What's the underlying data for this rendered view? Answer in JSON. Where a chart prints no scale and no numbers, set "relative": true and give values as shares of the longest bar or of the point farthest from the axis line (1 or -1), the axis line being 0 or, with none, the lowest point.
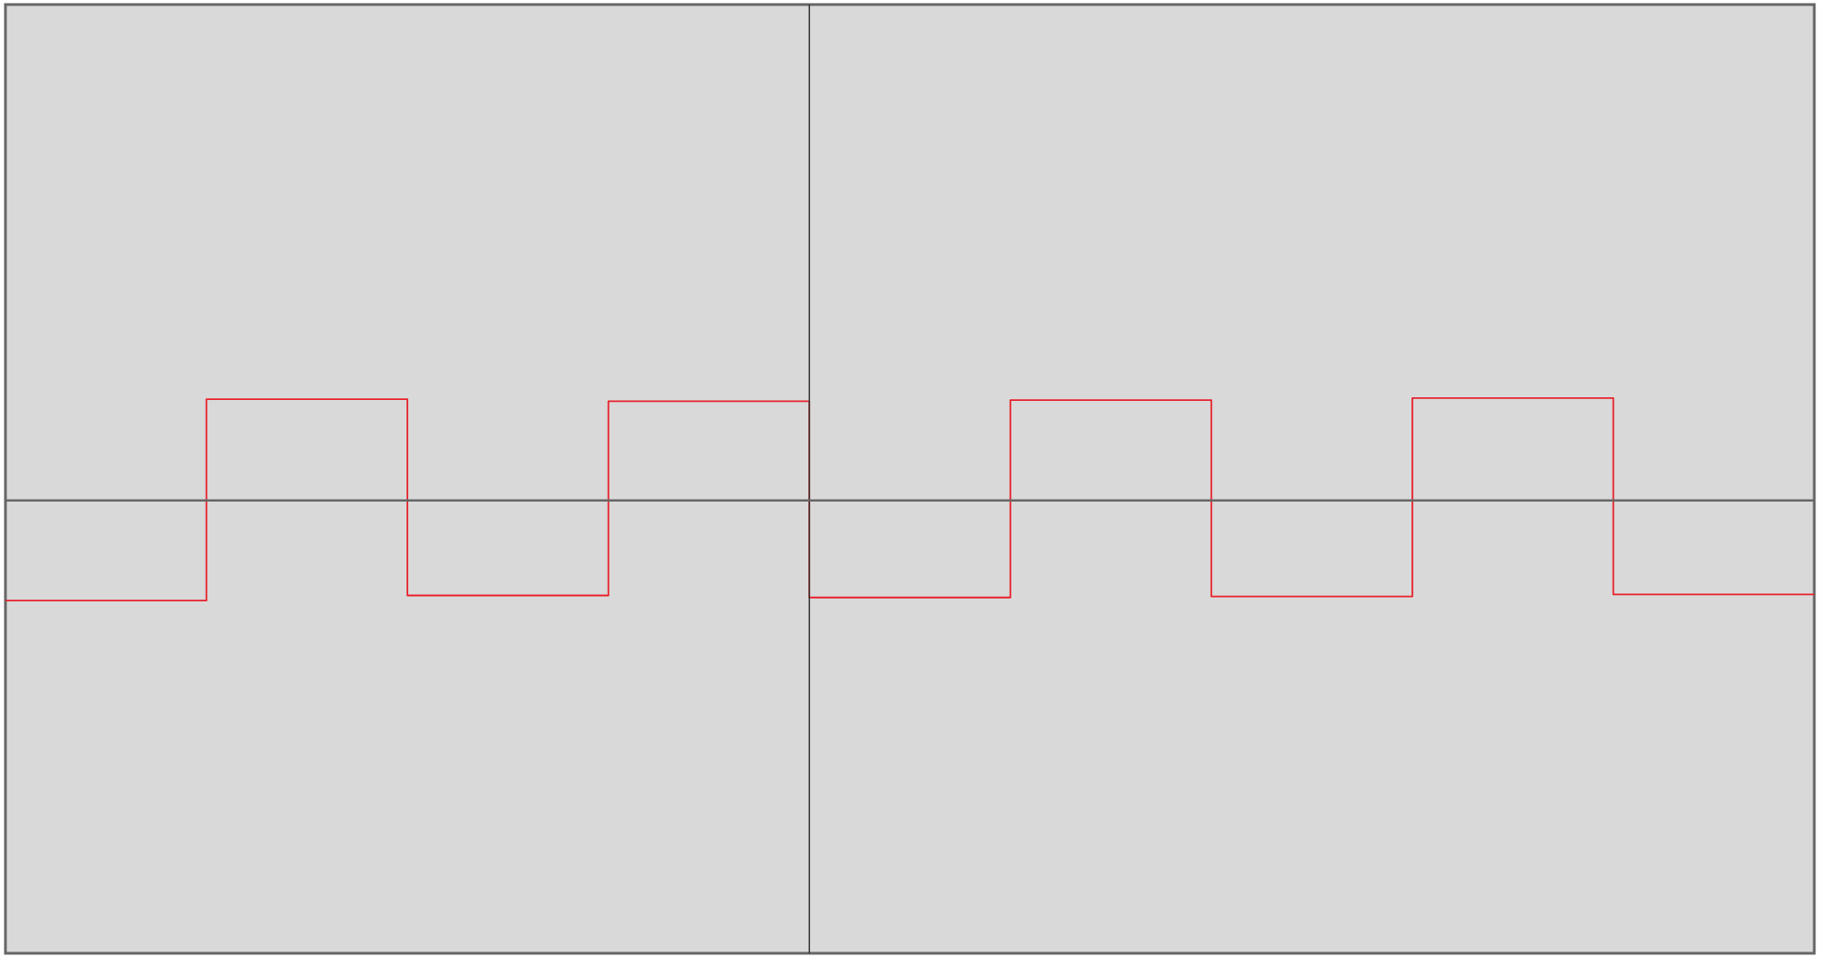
{
  "chart_data": {
    "type": "step",
    "relative": true,
    "categories": [
      null,
      null,
      null,
      null,
      null,
      null,
      null,
      null,
      null,
      null
    ],
    "series": [
      {
        "color": "#e8212b",
        "values": [
          -0.98,
          0.99,
          -0.93,
          0.97,
          -0.95,
          0.98,
          -0.94,
          1,
          -0.92,
          -0.92
        ]
      }
    ]
  }
}
